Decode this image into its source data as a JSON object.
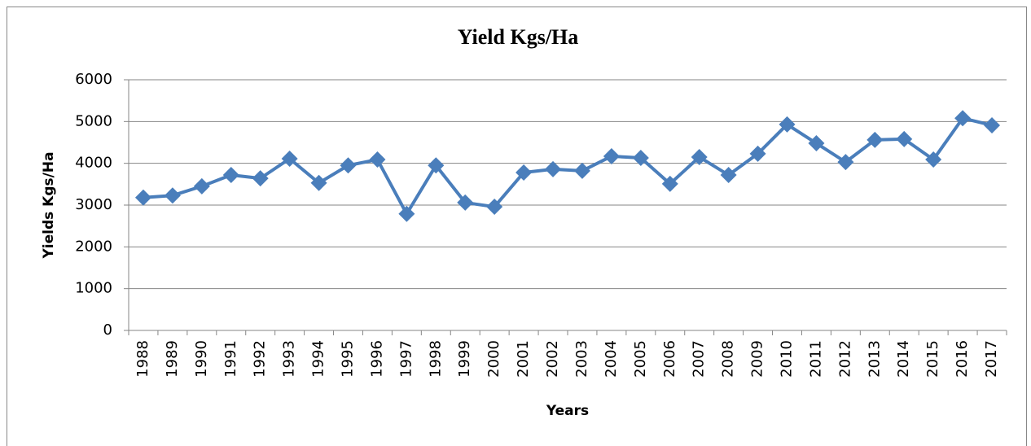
{
  "chart_data": {
    "type": "line",
    "title": "Yield Kgs/Ha",
    "x_label": "Years",
    "y_label": "Yields Kgs/Ha",
    "categories": [
      "1988",
      "1989",
      "1990",
      "1991",
      "1992",
      "1993",
      "1994",
      "1995",
      "1996",
      "1997",
      "1998",
      "1999",
      "2000",
      "2001",
      "2002",
      "2003",
      "2004",
      "2005",
      "2006",
      "2007",
      "2008",
      "2009",
      "2010",
      "2011",
      "2012",
      "2013",
      "2014",
      "2015",
      "2016",
      "2017"
    ],
    "values": [
      3180,
      3230,
      3450,
      3720,
      3640,
      4110,
      3530,
      3950,
      4090,
      2790,
      3950,
      3060,
      2960,
      3780,
      3860,
      3820,
      4170,
      4130,
      3510,
      4150,
      3720,
      4230,
      4930,
      4480,
      4030,
      4560,
      4580,
      4090,
      5080,
      4910
    ],
    "color": "#4a7ebb",
    "ylim": [
      0,
      6000
    ],
    "yticks": [
      0,
      1000,
      2000,
      3000,
      4000,
      5000,
      6000
    ],
    "grid": true
  }
}
